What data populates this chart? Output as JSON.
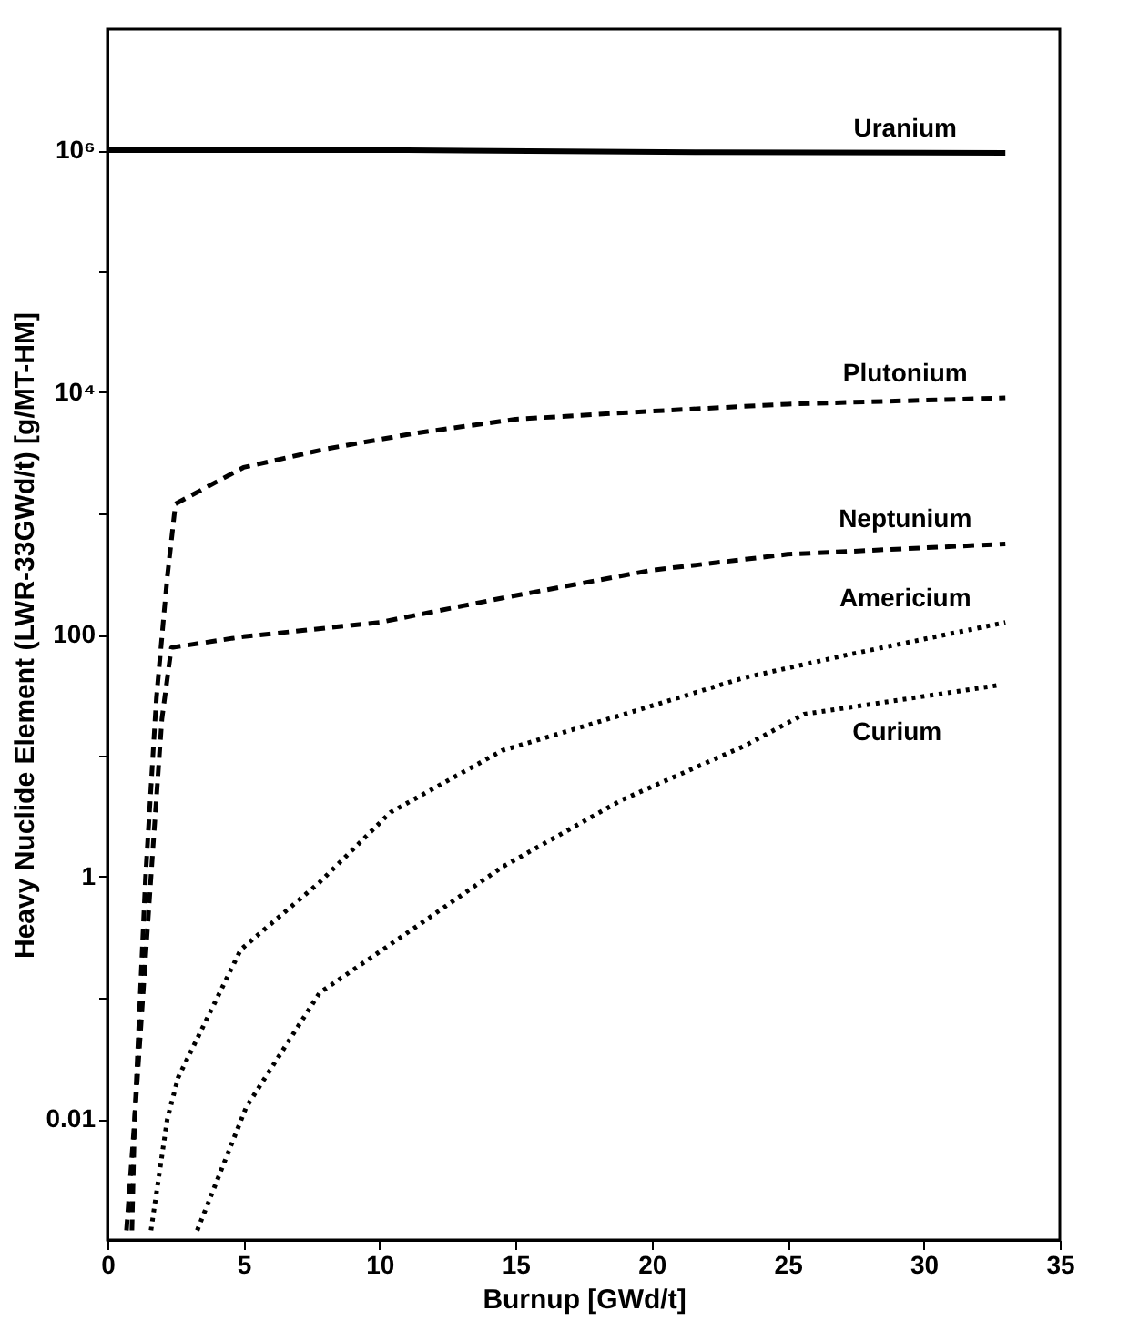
{
  "chart_data": {
    "type": "line",
    "xlabel": "Burnup [GWd/t]",
    "ylabel": "Heavy Nuclide Element (LWR-33GWd/t) [g/MT-HM]",
    "xlim": [
      0,
      35
    ],
    "xticks": [
      0,
      5,
      10,
      15,
      20,
      25,
      30,
      35
    ],
    "ylim": [
      0.001,
      10000000
    ],
    "log": true,
    "yticks": [
      {
        "value": 0.01,
        "label": "0.01"
      },
      {
        "value": 0.1,
        "label": null
      },
      {
        "value": 1,
        "label": "1"
      },
      {
        "value": 10,
        "label": null
      },
      {
        "value": 100,
        "label": "100"
      },
      {
        "value": 1000,
        "label": null
      },
      {
        "value": 10000,
        "label": "10⁴"
      },
      {
        "value": 100000,
        "label": null
      },
      {
        "value": 1000000,
        "label": "10⁶"
      }
    ],
    "grid": false,
    "marker": "none",
    "series": [
      {
        "name": "Uranium",
        "color": "#000000",
        "line_style": "solid",
        "x": [
          0,
          11,
          22,
          33
        ],
        "values": [
          1000000,
          1000000,
          960000,
          950000
        ]
      },
      {
        "name": "Plutonium",
        "color": "#000000",
        "line_style": "dashed",
        "x": [
          0.7,
          1.0,
          1.4,
          1.8,
          2.2,
          2.5,
          5,
          8,
          11.3,
          15,
          20,
          25,
          33
        ],
        "values": [
          0.0012,
          0.01,
          1,
          30,
          300,
          1200,
          2400,
          3400,
          4600,
          6000,
          7000,
          8000,
          9000
        ]
      },
      {
        "name": "Neptunium",
        "color": "#000000",
        "line_style": "dashed",
        "x": [
          0.9,
          1.0,
          1.6,
          2.0,
          2.35,
          5,
          10,
          14.5,
          20,
          25,
          33
        ],
        "values": [
          0.0012,
          0.01,
          1,
          20,
          78,
          96,
          126,
          200,
          340,
          460,
          560
        ]
      },
      {
        "name": "Americium",
        "color": "#000000",
        "line_style": "dotted",
        "x": [
          1.6,
          2.2,
          2.6,
          4.9,
          7.8,
          10.4,
          14.5,
          19,
          23.4,
          27.2,
          33
        ],
        "values": [
          0.0012,
          0.01,
          0.022,
          0.25,
          0.9,
          3.4,
          11,
          22,
          44,
          68,
          126
        ]
      },
      {
        "name": "Curium",
        "color": "#000000",
        "line_style": "dotted",
        "x": [
          3.3,
          5.1,
          7.8,
          11.3,
          14.5,
          18.9,
          23.4,
          25.6,
          32.7
        ],
        "values": [
          0.0012,
          0.0125,
          0.11,
          0.38,
          1.2,
          4.3,
          12,
          22,
          38
        ]
      }
    ]
  }
}
